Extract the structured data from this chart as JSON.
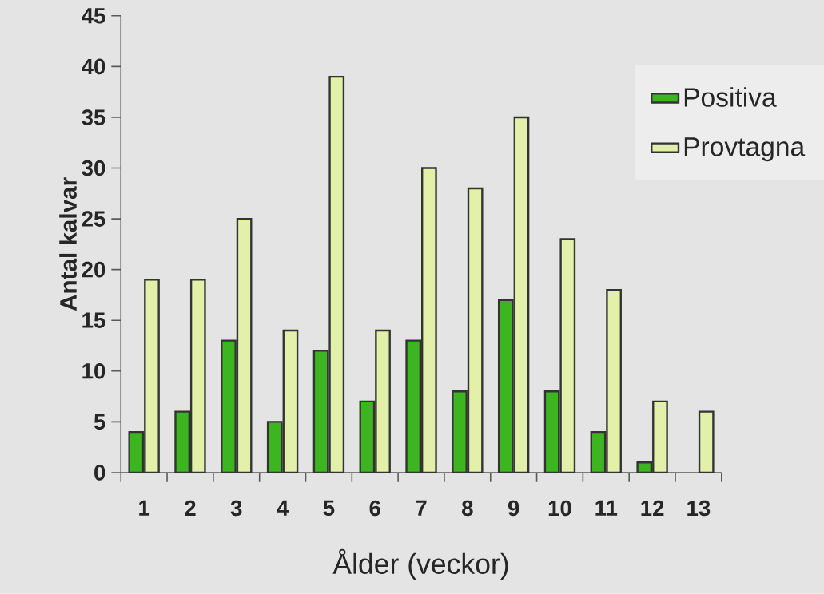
{
  "chart_data": {
    "type": "bar",
    "xlabel": "Ålder (veckor)",
    "ylabel": "Antal kalvar",
    "categories": [
      "1",
      "2",
      "3",
      "4",
      "5",
      "6",
      "7",
      "8",
      "9",
      "10",
      "11",
      "12",
      "13"
    ],
    "series": [
      {
        "name": "Positiva",
        "color": "#3cb521",
        "values": [
          4,
          6,
          13,
          5,
          12,
          7,
          13,
          8,
          17,
          8,
          4,
          1,
          null
        ]
      },
      {
        "name": "Provtagna",
        "color": "#e2f0a9",
        "values": [
          19,
          19,
          25,
          14,
          39,
          14,
          30,
          28,
          35,
          23,
          18,
          7,
          6
        ]
      }
    ],
    "ylim": [
      0,
      45
    ],
    "yticks": [
      0,
      5,
      10,
      15,
      20,
      25,
      30,
      35,
      40,
      45
    ],
    "legend": "top right",
    "grid": false
  }
}
